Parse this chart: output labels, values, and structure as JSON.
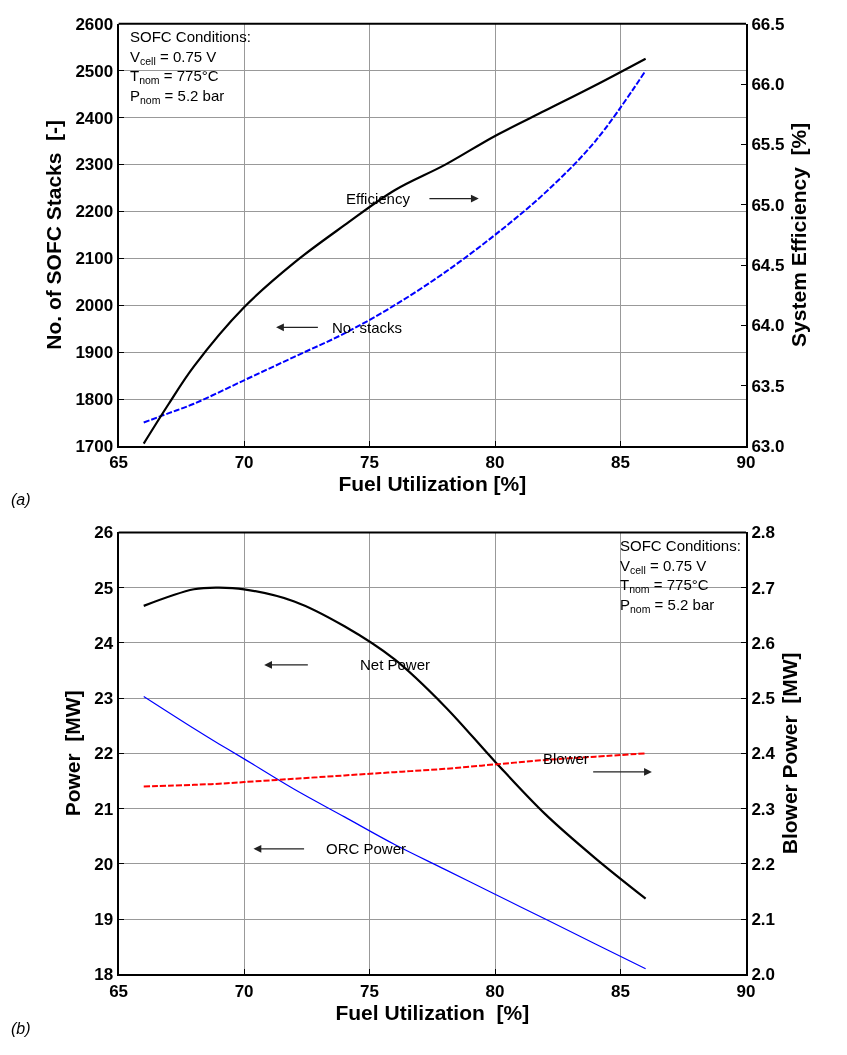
{
  "chart_data": [
    {
      "type": "line",
      "xlabel": "Fuel Utilization [%]",
      "ylabel": "No. of SOFC Stacks  [-]",
      "y2label": "System Efficiency  [%]",
      "x": [
        66,
        67,
        68,
        70,
        72,
        74,
        76,
        78,
        80,
        82,
        84,
        86
      ],
      "xlim": [
        65,
        90
      ],
      "xticks": [
        65,
        70,
        75,
        80,
        85,
        90
      ],
      "ylim": [
        1700,
        2600
      ],
      "yticks": [
        1700,
        1800,
        1900,
        2000,
        2100,
        2200,
        2300,
        2400,
        2500,
        2600
      ],
      "y2lim": [
        63.0,
        66.5
      ],
      "y2ticks": [
        {
          "value": 63.0,
          "label": "63.0"
        },
        {
          "value": 63.5,
          "label": "63.5"
        },
        {
          "value": 64.0,
          "label": "64.0"
        },
        {
          "value": 64.5,
          "label": "64.5"
        },
        {
          "value": 65.0,
          "label": "65.0"
        },
        {
          "value": 65.5,
          "label": "65.5"
        },
        {
          "value": 66.0,
          "label": "66.0"
        },
        {
          "value": 66.5,
          "label": "66.5"
        }
      ],
      "grid": true,
      "marker": "none",
      "series": [
        {
          "color": "#000000",
          "axis": "y2",
          "line_style": "solid",
          "values": [
            63.02,
            63.35,
            63.66,
            64.15,
            64.52,
            64.83,
            65.12,
            65.33,
            65.57,
            65.78,
            65.99,
            66.21
          ]
        },
        {
          "color": "#0000ff",
          "line_style": "dashed",
          "values": [
            1750,
            1770,
            1790,
            1840,
            1890,
            1940,
            2000,
            2070,
            2150,
            2240,
            2350,
            2500
          ]
        }
      ],
      "annotations": [
        "SOFC Conditions:\nV$_{cell}$ = 0.75 V\nT$_{nom}$ = 775°C\nP$_{nom}$ = 5.2 bar",
        "Efficiency",
        "No. stacks",
        "(a)"
      ]
    },
    {
      "type": "line",
      "xlabel": "Fuel Utilization  [%]",
      "ylabel": "Power  [MW]",
      "y2label": "Blower Power  [MW]",
      "x": [
        66,
        68,
        69,
        70,
        72,
        74,
        76,
        78,
        80,
        82,
        84,
        86
      ],
      "xlim": [
        65,
        90
      ],
      "xticks": [
        65,
        70,
        75,
        80,
        85,
        90
      ],
      "ylim": [
        18,
        26
      ],
      "yticks": [
        18,
        19,
        20,
        21,
        22,
        23,
        24,
        25,
        26
      ],
      "y2lim": [
        2.0,
        2.8
      ],
      "y2ticks": [
        {
          "value": 2.0,
          "label": "2.0"
        },
        {
          "value": 2.1,
          "label": "2.1"
        },
        {
          "value": 2.2,
          "label": "2.2"
        },
        {
          "value": 2.3,
          "label": "2.3"
        },
        {
          "value": 2.4,
          "label": "2.4"
        },
        {
          "value": 2.5,
          "label": "2.5"
        },
        {
          "value": 2.6,
          "label": "2.6"
        },
        {
          "value": 2.7,
          "label": "2.7"
        },
        {
          "value": 2.8,
          "label": "2.8"
        }
      ],
      "grid": true,
      "marker": "none",
      "series": [
        {
          "color": "#000000",
          "line_style": "solid",
          "values": [
            24.67,
            24.97,
            25.0,
            24.97,
            24.75,
            24.3,
            23.7,
            22.85,
            21.85,
            20.9,
            20.1,
            19.37
          ]
        },
        {
          "color": "#0000ff",
          "line_style": "solid",
          "values": [
            23.03,
            22.45,
            22.17,
            21.9,
            21.35,
            20.85,
            20.35,
            19.9,
            19.45,
            19.0,
            18.55,
            18.1
          ]
        },
        {
          "color": "#ff0000",
          "axis": "y2",
          "line_style": "dashed",
          "values": [
            2.34,
            2.343,
            2.345,
            2.348,
            2.354,
            2.36,
            2.366,
            2.372,
            2.38,
            2.388,
            2.394,
            2.4
          ]
        }
      ],
      "annotations": [
        "SOFC Conditions:\nV$_{cell}$ = 0.75 V\nT$_{nom}$ = 775°C\nP$_{nom}$ = 5.2 bar",
        "Net Power",
        "Blower",
        "ORC Power",
        "(b)"
      ]
    }
  ]
}
